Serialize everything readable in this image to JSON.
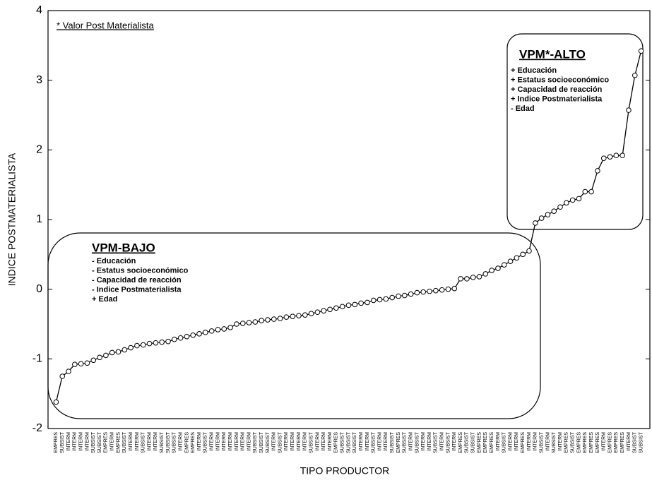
{
  "chart_data": {
    "type": "line",
    "x_label": "TIPO PRODUCTOR",
    "y_label": "INDICE POSTMATERIALISTA",
    "annotations": {
      "note": "* Valor Post Materialista",
      "low": {
        "title": "VPM-BAJO",
        "items": [
          "- Educación",
          "- Estatus socioeconómico",
          "- Capacidad de reacción",
          "- Indice Postmaterialista",
          "+ Edad"
        ]
      },
      "high": {
        "title": "VPM*-ALTO",
        "items": [
          "+ Educación",
          "+ Estatus socioeconómico",
          "+ Capacidad de reacción",
          "+ Indice Postmaterialista",
          "- Edad"
        ]
      }
    },
    "categories": [
      "EMPRES",
      "SUBSIST",
      "INTERM",
      "INTERM",
      "INTERM",
      "INTERM",
      "SUBSIST",
      "SUBSIST",
      "EMPRES",
      "INTERM",
      "EMPRES",
      "SUBSIST",
      "INTERM",
      "INTERM",
      "SUBSIST",
      "INTERM",
      "INTERM",
      "SUBSIST",
      "SUBSIST",
      "SUBSIST",
      "INTERM",
      "EMPRES",
      "EMPRES",
      "INTERM",
      "SUBSIST",
      "INTERM",
      "INTERM",
      "INTERM",
      "INTERM",
      "INTERM",
      "INTERM",
      "INTERM",
      "SUBSIST",
      "SUBSIST",
      "SUBSIST",
      "INTERM",
      "SUBSIST",
      "INTERM",
      "INTERM",
      "INTERM",
      "INTERM",
      "SUBSIST",
      "INTERM",
      "INTERM",
      "INTERM",
      "EMPRES",
      "SUBSIST",
      "SUBSIST",
      "SUBSIST",
      "INTERM",
      "INTERM",
      "SUBSIST",
      "INTERM",
      "INTERM",
      "SUBSIST",
      "EMPRES",
      "SUBSIST",
      "INTERM",
      "SUBSIST",
      "INTERM",
      "INTERM",
      "SUBSIST",
      "INTERM",
      "SUBSIST",
      "INTERM",
      "EMPRES",
      "SUBSIST",
      "SUBSIST",
      "EMPRES",
      "EMPRES",
      "EMPRES",
      "INTERM",
      "SUBSIST",
      "INTERM",
      "INTERM",
      "EMPRES",
      "INTERM",
      "INTERM",
      "SUBSIST",
      "INTERM",
      "SUBSIST",
      "INTERM",
      "EMPRES",
      "SUBSIST",
      "EMPRES",
      "EMPRES",
      "EMPRES",
      "EMPRES",
      "INTERM",
      "EMPRES",
      "EMPRES",
      "EMPRES",
      "INTERM",
      "SUBSIST",
      "SUBSIST"
    ],
    "series": [
      {
        "name": "INDICE POSTMATERIALISTA",
        "color": "#000000",
        "values": [
          -1.62,
          -1.25,
          -1.18,
          -1.08,
          -1.07,
          -1.06,
          -1.02,
          -0.98,
          -0.95,
          -0.91,
          -0.9,
          -0.87,
          -0.84,
          -0.81,
          -0.8,
          -0.78,
          -0.77,
          -0.76,
          -0.75,
          -0.72,
          -0.7,
          -0.68,
          -0.66,
          -0.64,
          -0.62,
          -0.6,
          -0.58,
          -0.57,
          -0.55,
          -0.5,
          -0.49,
          -0.48,
          -0.47,
          -0.45,
          -0.44,
          -0.43,
          -0.42,
          -0.4,
          -0.39,
          -0.38,
          -0.37,
          -0.35,
          -0.33,
          -0.31,
          -0.29,
          -0.27,
          -0.25,
          -0.23,
          -0.22,
          -0.2,
          -0.19,
          -0.16,
          -0.15,
          -0.14,
          -0.12,
          -0.1,
          -0.09,
          -0.07,
          -0.05,
          -0.04,
          -0.03,
          -0.02,
          -0.01,
          0,
          0.01,
          0.15,
          0.15,
          0.17,
          0.18,
          0.22,
          0.27,
          0.3,
          0.35,
          0.4,
          0.45,
          0.5,
          0.55,
          0.95,
          1.02,
          1.07,
          1.12,
          1.18,
          1.24,
          1.28,
          1.3,
          1.4,
          1.4,
          1.7,
          1.88,
          1.9,
          1.92,
          1.92,
          2.57,
          3.07,
          3.42
        ]
      }
    ],
    "ylim": [
      -2,
      4
    ],
    "yticks": [
      -2,
      -1,
      0,
      1,
      2,
      3,
      4
    ],
    "grid": false
  }
}
